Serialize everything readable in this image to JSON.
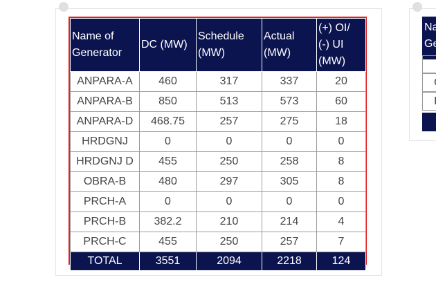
{
  "table": {
    "columns": [
      "Name of Generator",
      "DC (MW)",
      "Schedule (MW)",
      "Actual (MW)",
      "(+) OI/ (-) UI (MW)"
    ],
    "rows": [
      [
        "ANPARA-A",
        "460",
        "317",
        "337",
        "20"
      ],
      [
        "ANPARA-B",
        "850",
        "513",
        "573",
        "60"
      ],
      [
        "ANPARA-D",
        "468.75",
        "257",
        "275",
        "18"
      ],
      [
        "HRDGNJ",
        "0",
        "0",
        "0",
        "0"
      ],
      [
        "HRDGNJ D",
        "455",
        "250",
        "258",
        "8"
      ],
      [
        "OBRA-B",
        "480",
        "297",
        "305",
        "8"
      ],
      [
        "PRCH-A",
        "0",
        "0",
        "0",
        "0"
      ],
      [
        "PRCH-B",
        "382.2",
        "210",
        "214",
        "4"
      ],
      [
        "PRCH-C",
        "455",
        "250",
        "257",
        "7"
      ]
    ],
    "total": [
      "TOTAL",
      "3551",
      "2094",
      "2218",
      "124"
    ]
  },
  "right_card": {
    "header_partial": "Na Ge",
    "row_partials": [
      "C",
      "I"
    ]
  },
  "colors": {
    "header_bg": "#0c1450",
    "border_accent": "#e21f1f"
  }
}
